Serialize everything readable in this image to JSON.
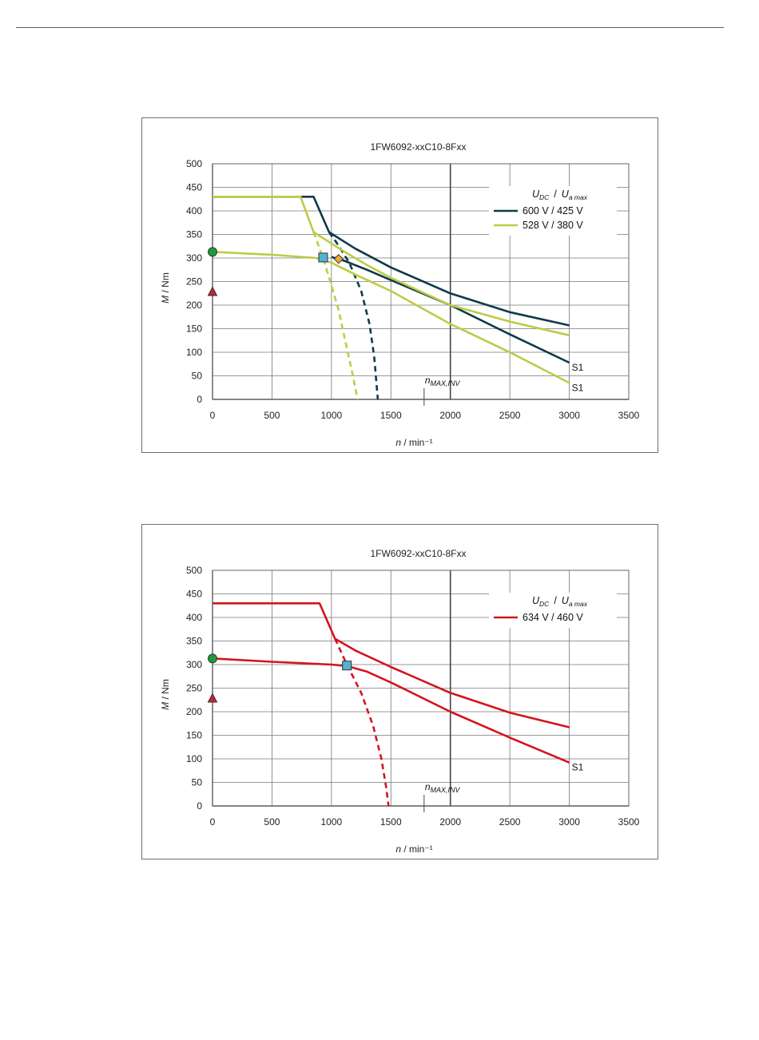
{
  "charts": [
    {
      "chart_data": {
        "type": "line",
        "title": "1FW6092-xxC10-8Fxx",
        "xlabel": "n / min⁻¹",
        "ylabel": "M / Nm",
        "xlim": [
          0,
          3500
        ],
        "ylim": [
          0,
          500
        ],
        "xticks": [
          0,
          500,
          1000,
          1500,
          2000,
          2500,
          3000,
          3500
        ],
        "yticks": [
          0,
          50,
          100,
          150,
          200,
          250,
          300,
          350,
          400,
          450,
          500
        ],
        "grid": true,
        "legend_position": "top-right",
        "legend_header": {
          "u_dc": "U",
          "u_dc_sub": "DC",
          "sep": "/",
          "u_a": "U",
          "u_a_sub": "a max"
        },
        "series": [
          {
            "name": "600 V / 425 V",
            "color": "#0f3a4a",
            "max_curve": [
              [
                0,
                430
              ],
              [
                850,
                430
              ],
              [
                980,
                355
              ],
              [
                1200,
                320
              ],
              [
                1500,
                280
              ],
              [
                2000,
                225
              ],
              [
                2500,
                185
              ],
              [
                3000,
                157
              ]
            ],
            "s1_curve": [
              [
                1000,
                302
              ],
              [
                1100,
                295
              ],
              [
                1300,
                275
              ],
              [
                1500,
                253
              ],
              [
                2000,
                200
              ],
              [
                2500,
                138
              ],
              [
                3000,
                78
              ]
            ],
            "inverter_limit": [
              [
                980,
                355
              ],
              [
                1050,
                330
              ],
              [
                1150,
                290
              ],
              [
                1250,
                230
              ],
              [
                1320,
                160
              ],
              [
                1360,
                90
              ],
              [
                1380,
                30
              ],
              [
                1390,
                0
              ]
            ],
            "s1_label": "S1"
          },
          {
            "name": "528 V / 380 V",
            "color": "#bccc48",
            "max_curve": [
              [
                0,
                430
              ],
              [
                740,
                430
              ],
              [
                850,
                355
              ],
              [
                1100,
                315
              ],
              [
                1300,
                285
              ],
              [
                1500,
                258
              ],
              [
                2000,
                200
              ],
              [
                2500,
                165
              ],
              [
                3000,
                136
              ]
            ],
            "s1_curve": [
              [
                0,
                313
              ],
              [
                500,
                307
              ],
              [
                870,
                300
              ],
              [
                1000,
                290
              ],
              [
                1200,
                265
              ],
              [
                1500,
                230
              ],
              [
                2000,
                160
              ],
              [
                2500,
                100
              ],
              [
                3000,
                35
              ]
            ],
            "inverter_limit": [
              [
                850,
                355
              ],
              [
                930,
                300
              ],
              [
                990,
                250
              ],
              [
                1060,
                190
              ],
              [
                1120,
                120
              ],
              [
                1180,
                50
              ],
              [
                1220,
                0
              ]
            ],
            "s1_label": "S1"
          }
        ],
        "markers": [
          {
            "type": "circle",
            "x": 0,
            "y": 313,
            "color": "#1f9a3a"
          },
          {
            "type": "triangle",
            "x": 0,
            "y": 228,
            "color": "#c0262c"
          },
          {
            "type": "square",
            "x": 930,
            "y": 301,
            "color": "#4fb2d6"
          },
          {
            "type": "diamond",
            "x": 1060,
            "y": 298,
            "color": "#f0a830"
          }
        ],
        "annotations": [
          {
            "text": "n",
            "sub": "MAX,INV",
            "x": 1900
          }
        ]
      }
    },
    {
      "chart_data": {
        "type": "line",
        "title": "1FW6092-xxC10-8Fxx",
        "xlabel": "n / min⁻¹",
        "ylabel": "M / Nm",
        "xlim": [
          0,
          3500
        ],
        "ylim": [
          0,
          500
        ],
        "xticks": [
          0,
          500,
          1000,
          1500,
          2000,
          2500,
          3000,
          3500
        ],
        "yticks": [
          0,
          50,
          100,
          150,
          200,
          250,
          300,
          350,
          400,
          450,
          500
        ],
        "grid": true,
        "legend_position": "top-right",
        "legend_header": {
          "u_dc": "U",
          "u_dc_sub": "DC",
          "sep": "/",
          "u_a": "U",
          "u_a_sub": "a max"
        },
        "series": [
          {
            "name": "634 V / 460 V",
            "color": "#d4141c",
            "max_curve": [
              [
                0,
                430
              ],
              [
                900,
                430
              ],
              [
                1030,
                355
              ],
              [
                1200,
                330
              ],
              [
                1500,
                295
              ],
              [
                2000,
                240
              ],
              [
                2500,
                198
              ],
              [
                3000,
                167
              ]
            ],
            "s1_curve": [
              [
                0,
                313
              ],
              [
                500,
                306
              ],
              [
                1000,
                300
              ],
              [
                1130,
                297
              ],
              [
                1300,
                285
              ],
              [
                1500,
                262
              ],
              [
                2000,
                200
              ],
              [
                2500,
                145
              ],
              [
                3000,
                92
              ]
            ],
            "inverter_limit": [
              [
                1030,
                355
              ],
              [
                1130,
                300
              ],
              [
                1250,
                240
              ],
              [
                1350,
                170
              ],
              [
                1420,
                100
              ],
              [
                1460,
                40
              ],
              [
                1480,
                0
              ]
            ],
            "s1_label": "S1"
          }
        ],
        "markers": [
          {
            "type": "circle",
            "x": 0,
            "y": 313,
            "color": "#1f9a3a"
          },
          {
            "type": "triangle",
            "x": 0,
            "y": 228,
            "color": "#c0262c"
          },
          {
            "type": "square",
            "x": 1130,
            "y": 298,
            "color": "#4fb2d6"
          }
        ],
        "annotations": [
          {
            "text": "n",
            "sub": "MAX,INV",
            "x": 1900
          }
        ]
      }
    }
  ]
}
